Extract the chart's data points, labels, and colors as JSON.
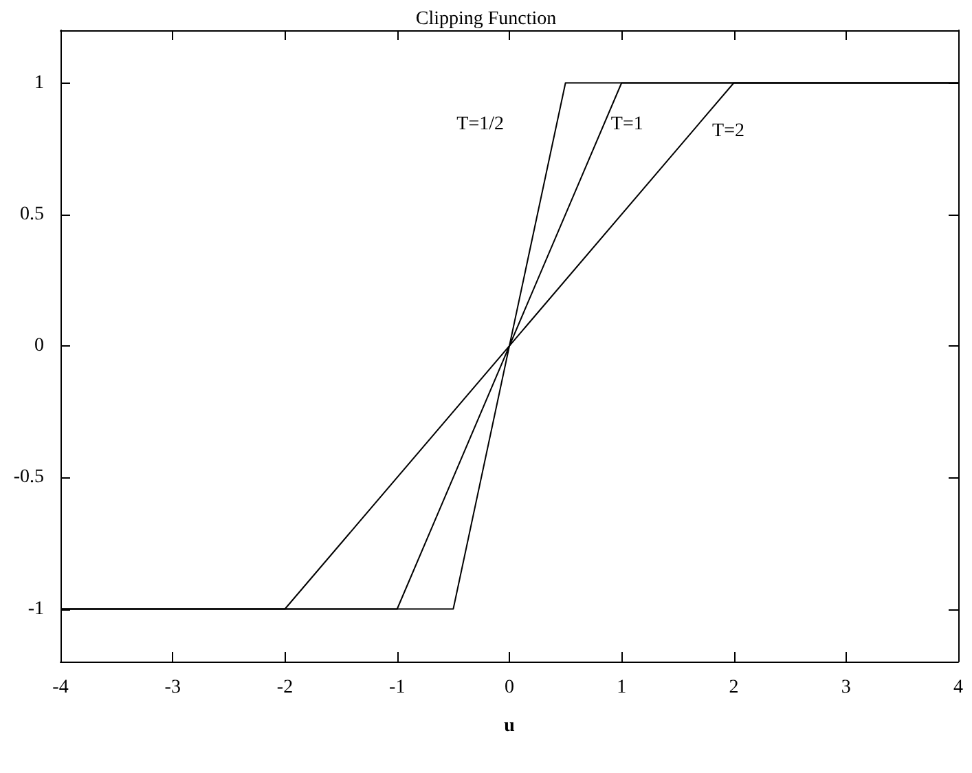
{
  "chart_data": {
    "type": "line",
    "title": "Clipping Function",
    "xlabel": "u",
    "series": [
      {
        "name": "T=1/2",
        "color": "#000000",
        "x": [
          -4,
          -0.5,
          0.5,
          4
        ],
        "values": [
          -1,
          -1,
          1,
          1
        ]
      },
      {
        "name": "T=1",
        "color": "#000000",
        "x": [
          -4,
          -1,
          1,
          4
        ],
        "values": [
          -1,
          -1,
          1,
          1
        ]
      },
      {
        "name": "T=2",
        "color": "#000000",
        "x": [
          -4,
          -2,
          2,
          4
        ],
        "values": [
          -1,
          -1,
          1,
          1
        ]
      }
    ],
    "xlim": [
      -4,
      4
    ],
    "xticks": [
      -4,
      -3,
      -2,
      -1,
      0,
      1,
      2,
      3,
      4
    ],
    "ylim": [
      -1.2,
      1.2
    ],
    "yticks": [
      -1,
      -0.5,
      0,
      0.5,
      1
    ],
    "grid": false,
    "legend": false,
    "marker": "none",
    "line_style": "solid"
  }
}
